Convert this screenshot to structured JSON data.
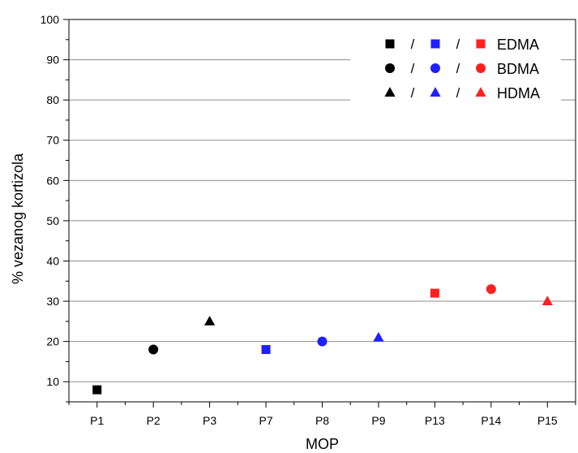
{
  "chart_data": {
    "type": "scatter",
    "xlabel": "MOP",
    "ylabel": "% vezanog kortizola",
    "ylim": [
      0,
      100
    ],
    "ylim_visible": [
      5,
      100
    ],
    "y_ticks": [
      10,
      20,
      30,
      40,
      50,
      60,
      70,
      80,
      90,
      100
    ],
    "grid": "horizontal",
    "categories": [
      "P1",
      "P2",
      "P3",
      "P7",
      "P8",
      "P9",
      "P13",
      "P14",
      "P15"
    ],
    "points": [
      {
        "category": "P1",
        "value": 8,
        "marker": "square",
        "color": "#000000"
      },
      {
        "category": "P2",
        "value": 18,
        "marker": "circle",
        "color": "#000000"
      },
      {
        "category": "P3",
        "value": 25,
        "marker": "triangle",
        "color": "#000000"
      },
      {
        "category": "P7",
        "value": 18,
        "marker": "square",
        "color": "#1f1fff"
      },
      {
        "category": "P8",
        "value": 20,
        "marker": "circle",
        "color": "#1f1fff"
      },
      {
        "category": "P9",
        "value": 21,
        "marker": "triangle",
        "color": "#1f1fff"
      },
      {
        "category": "P13",
        "value": 32,
        "marker": "square",
        "color": "#ff1f1f"
      },
      {
        "category": "P14",
        "value": 33,
        "marker": "circle",
        "color": "#ff1f1f"
      },
      {
        "category": "P15",
        "value": 30,
        "marker": "triangle",
        "color": "#ff1f1f"
      }
    ],
    "legend": {
      "placement": "top-right",
      "separator": "/",
      "entries": [
        {
          "label": "EDMA",
          "marker": "square",
          "colors": [
            "#000000",
            "#1f1fff",
            "#ff1f1f"
          ]
        },
        {
          "label": "BDMA",
          "marker": "circle",
          "colors": [
            "#000000",
            "#1f1fff",
            "#ff1f1f"
          ]
        },
        {
          "label": "HDMA",
          "marker": "triangle",
          "colors": [
            "#000000",
            "#1f1fff",
            "#ff1f1f"
          ]
        }
      ]
    }
  }
}
